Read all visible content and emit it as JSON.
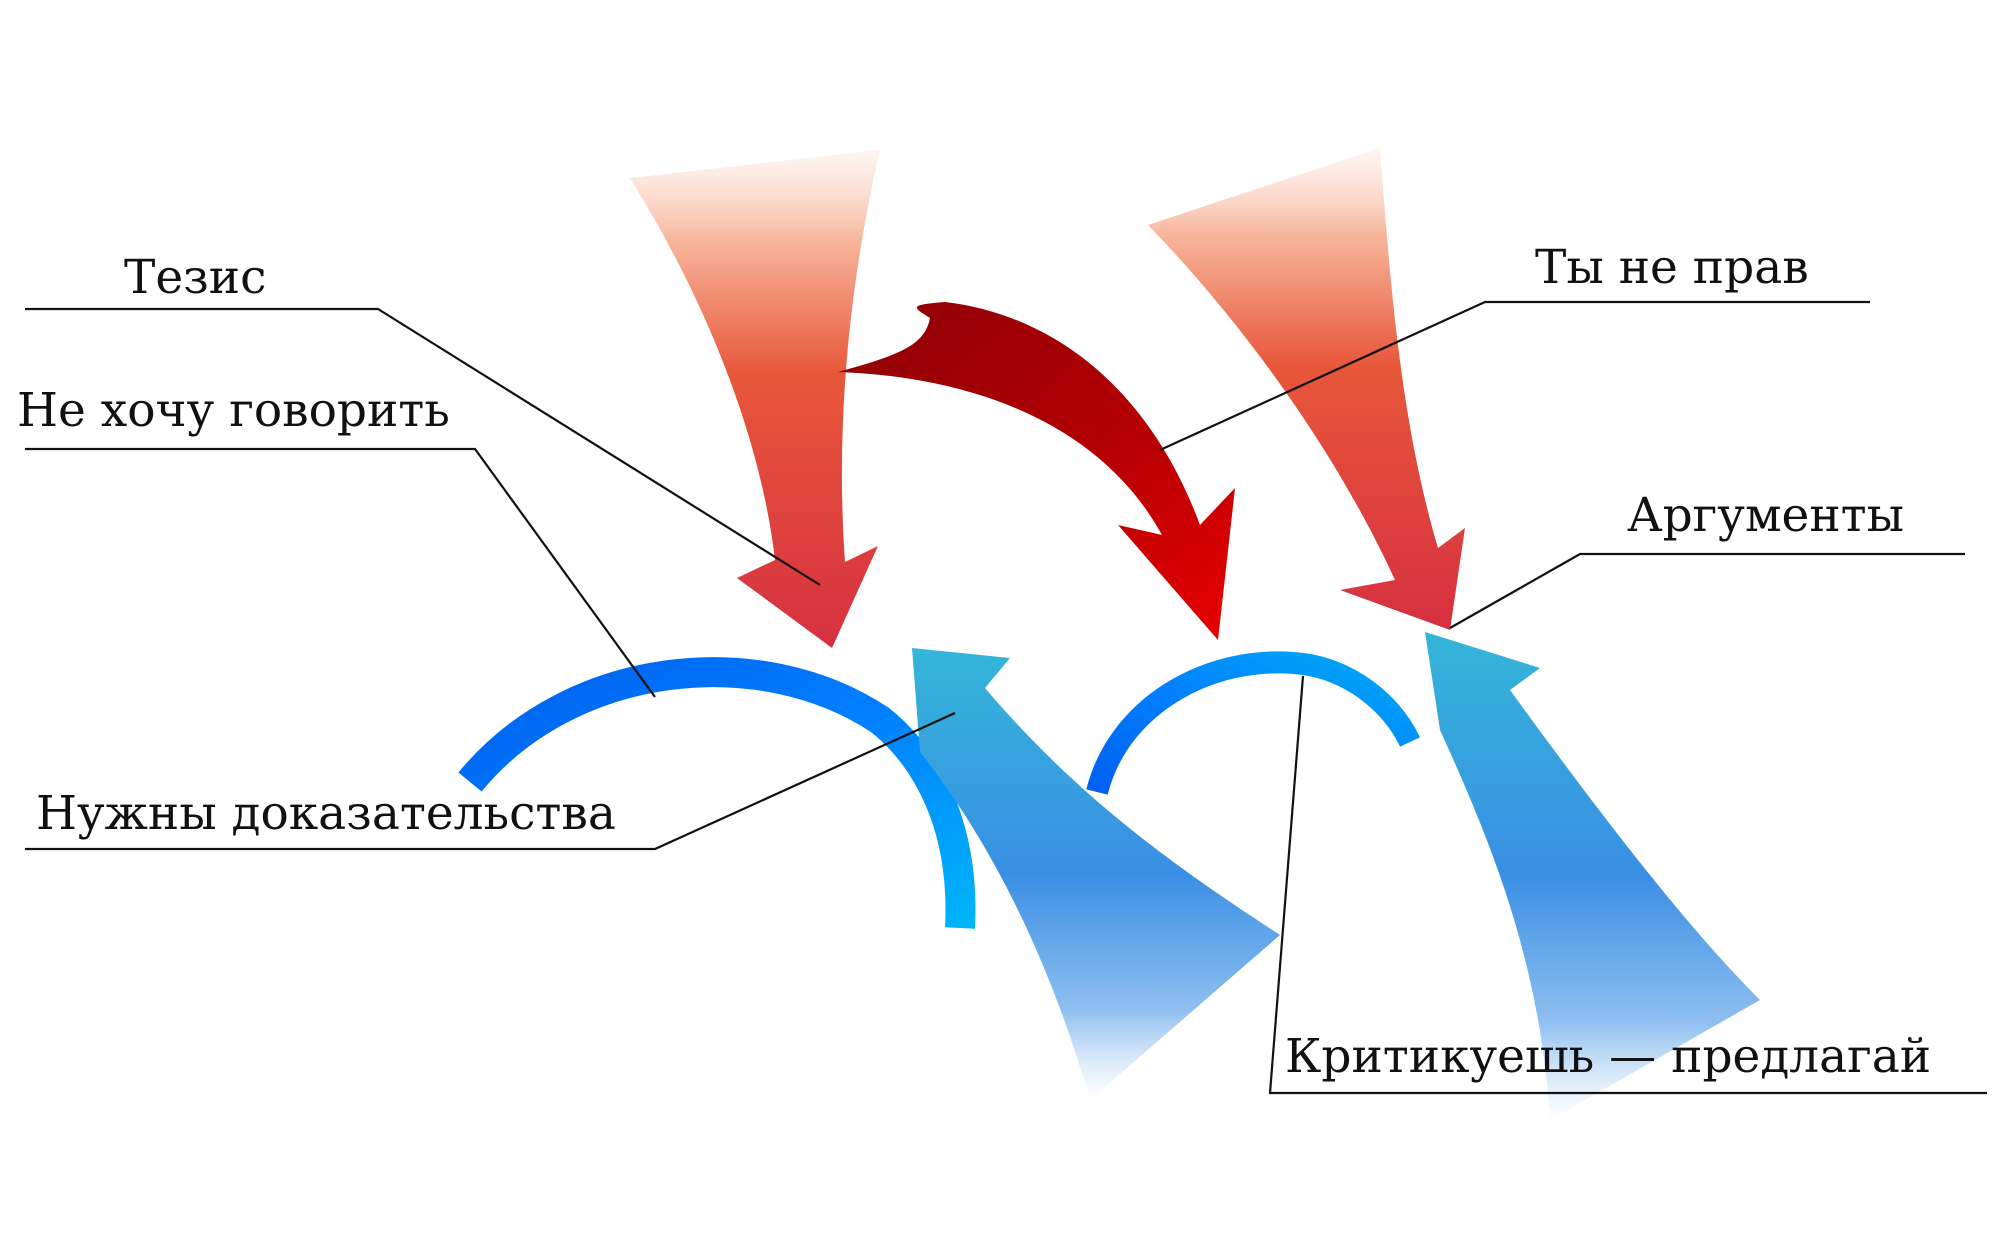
{
  "labels": {
    "thesis": "Тезис",
    "dont_want": "Не хочу говорить",
    "need_proof": "Нужны доказательства",
    "you_are_wrong": "Ты не прав",
    "arguments": "Аргументы",
    "criticize": "Критикуешь — предлагай"
  },
  "colors": {
    "red_arrow_top": "#fde3d6",
    "red_arrow_mid": "#e8573a",
    "red_arrow_tip": "#d63040",
    "dark_red_arrow": "#9c0006",
    "bright_red_tip": "#e60000",
    "blue_arc_start": "#0060f0",
    "blue_arc_end": "#00b4f8",
    "blue_arrow_tip": "#33b5d8",
    "blue_arrow_mid": "#3a8fe4",
    "blue_arrow_tail": "#ffffff",
    "leader_line": "#111111"
  }
}
